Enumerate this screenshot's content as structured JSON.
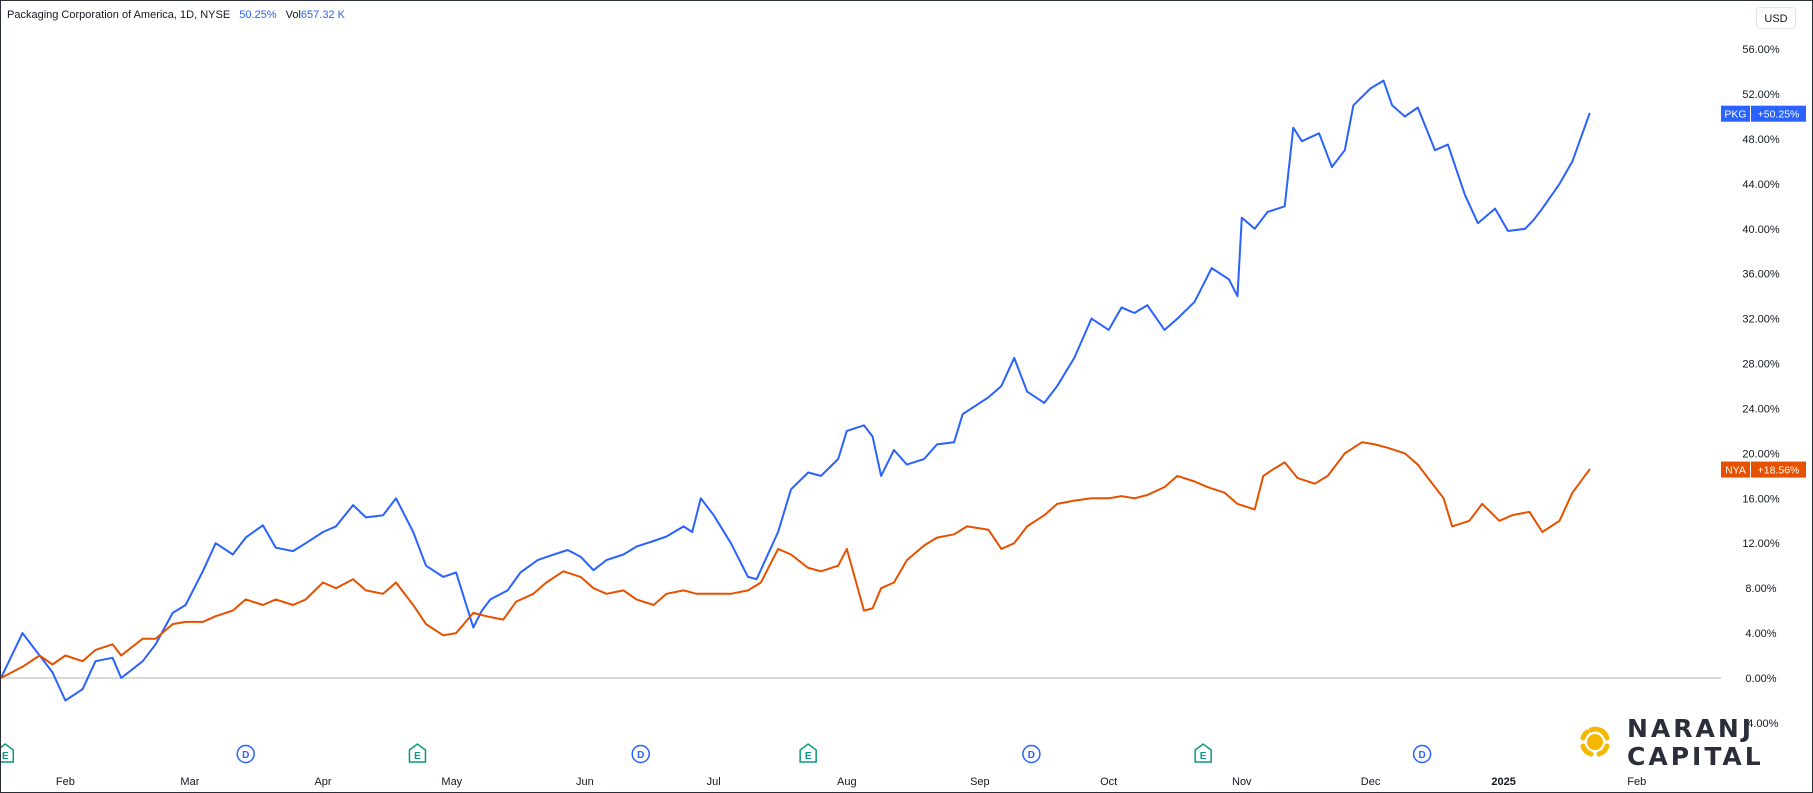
{
  "header": {
    "title": "Packaging Corporation of America, 1D, NYSE",
    "change": "50.25%",
    "vol_label": "Vol",
    "vol_value": "657.32 K"
  },
  "currency_button": "USD",
  "logo": {
    "line1": "NARANJ",
    "line2": "CAPITAL"
  },
  "colors": {
    "pkg": "#2962ff",
    "nya": "#e65100",
    "zero_line": "#b2b5be",
    "event_e": "#089981",
    "event_d": "#2962ff"
  },
  "chart_data": {
    "type": "line",
    "title": "",
    "ylabel": "",
    "y_unit": "%",
    "ylim": [
      -5.5,
      58
    ],
    "y_ticks": [
      "56.00%",
      "52.00%",
      "48.00%",
      "44.00%",
      "40.00%",
      "36.00%",
      "32.00%",
      "28.00%",
      "24.00%",
      "20.00%",
      "16.00%",
      "12.00%",
      "8.00%",
      "4.00%",
      "0.00%",
      "-4.00%"
    ],
    "y_tick_values": [
      56,
      52,
      48,
      44,
      40,
      36,
      32,
      28,
      24,
      20,
      16,
      12,
      8,
      4,
      0,
      -4
    ],
    "x_ticks": [
      {
        "label": "Feb",
        "date": "2024-02-01"
      },
      {
        "label": "Mar",
        "date": "2024-03-01"
      },
      {
        "label": "Apr",
        "date": "2024-04-01"
      },
      {
        "label": "May",
        "date": "2024-05-01"
      },
      {
        "label": "Jun",
        "date": "2024-06-01"
      },
      {
        "label": "Jul",
        "date": "2024-07-01"
      },
      {
        "label": "Aug",
        "date": "2024-08-01"
      },
      {
        "label": "Sep",
        "date": "2024-09-01"
      },
      {
        "label": "Oct",
        "date": "2024-10-01"
      },
      {
        "label": "Nov",
        "date": "2024-11-01"
      },
      {
        "label": "Dec",
        "date": "2024-12-01"
      },
      {
        "label": "2025",
        "date": "2025-01-01"
      },
      {
        "label": "Feb",
        "date": "2025-02-01"
      }
    ],
    "xlim": [
      "2024-01-17",
      "2025-02-12"
    ],
    "grid": false,
    "series": [
      {
        "name": "PKG",
        "last_label": "+50.25%",
        "points": [
          [
            "2024-01-17",
            0
          ],
          [
            "2024-01-22",
            4
          ],
          [
            "2024-01-25",
            2.5
          ],
          [
            "2024-01-29",
            0.5
          ],
          [
            "2024-02-01",
            -2
          ],
          [
            "2024-02-05",
            -1
          ],
          [
            "2024-02-08",
            1.5
          ],
          [
            "2024-02-12",
            1.8
          ],
          [
            "2024-02-14",
            0
          ],
          [
            "2024-02-19",
            1.5
          ],
          [
            "2024-02-22",
            3
          ],
          [
            "2024-02-26",
            5.8
          ],
          [
            "2024-02-29",
            6.5
          ],
          [
            "2024-03-04",
            9.5
          ],
          [
            "2024-03-07",
            12
          ],
          [
            "2024-03-11",
            11
          ],
          [
            "2024-03-14",
            12.5
          ],
          [
            "2024-03-18",
            13.6
          ],
          [
            "2024-03-21",
            11.6
          ],
          [
            "2024-03-25",
            11.3
          ],
          [
            "2024-03-28",
            12
          ],
          [
            "2024-04-01",
            13
          ],
          [
            "2024-04-04",
            13.5
          ],
          [
            "2024-04-08",
            15.4
          ],
          [
            "2024-04-11",
            14.3
          ],
          [
            "2024-04-15",
            14.5
          ],
          [
            "2024-04-18",
            16
          ],
          [
            "2024-04-22",
            13
          ],
          [
            "2024-04-25",
            10
          ],
          [
            "2024-04-29",
            9
          ],
          [
            "2024-05-02",
            9.4
          ],
          [
            "2024-05-06",
            4.5
          ],
          [
            "2024-05-08",
            6
          ],
          [
            "2024-05-10",
            7
          ],
          [
            "2024-05-14",
            7.8
          ],
          [
            "2024-05-17",
            9.4
          ],
          [
            "2024-05-21",
            10.5
          ],
          [
            "2024-05-24",
            10.9
          ],
          [
            "2024-05-28",
            11.4
          ],
          [
            "2024-05-31",
            10.8
          ],
          [
            "2024-06-03",
            9.6
          ],
          [
            "2024-06-06",
            10.5
          ],
          [
            "2024-06-10",
            11
          ],
          [
            "2024-06-13",
            11.7
          ],
          [
            "2024-06-17",
            12.2
          ],
          [
            "2024-06-20",
            12.6
          ],
          [
            "2024-06-24",
            13.5
          ],
          [
            "2024-06-26",
            13
          ],
          [
            "2024-06-28",
            16
          ],
          [
            "2024-07-01",
            14.5
          ],
          [
            "2024-07-05",
            12
          ],
          [
            "2024-07-09",
            9
          ],
          [
            "2024-07-11",
            8.8
          ],
          [
            "2024-07-16",
            13
          ],
          [
            "2024-07-19",
            16.8
          ],
          [
            "2024-07-23",
            18.3
          ],
          [
            "2024-07-26",
            18
          ],
          [
            "2024-07-30",
            19.5
          ],
          [
            "2024-08-01",
            22
          ],
          [
            "2024-08-05",
            22.5
          ],
          [
            "2024-08-07",
            21.5
          ],
          [
            "2024-08-09",
            18
          ],
          [
            "2024-08-12",
            20.3
          ],
          [
            "2024-08-15",
            19
          ],
          [
            "2024-08-19",
            19.5
          ],
          [
            "2024-08-22",
            20.8
          ],
          [
            "2024-08-26",
            21
          ],
          [
            "2024-08-28",
            23.5
          ],
          [
            "2024-09-03",
            25
          ],
          [
            "2024-09-06",
            26
          ],
          [
            "2024-09-09",
            28.5
          ],
          [
            "2024-09-12",
            25.5
          ],
          [
            "2024-09-16",
            24.5
          ],
          [
            "2024-09-19",
            26
          ],
          [
            "2024-09-23",
            28.5
          ],
          [
            "2024-09-27",
            32
          ],
          [
            "2024-10-01",
            31
          ],
          [
            "2024-10-04",
            33
          ],
          [
            "2024-10-07",
            32.5
          ],
          [
            "2024-10-10",
            33.2
          ],
          [
            "2024-10-14",
            31
          ],
          [
            "2024-10-17",
            32
          ],
          [
            "2024-10-21",
            33.5
          ],
          [
            "2024-10-25",
            36.5
          ],
          [
            "2024-10-29",
            35.5
          ],
          [
            "2024-10-31",
            34
          ],
          [
            "2024-11-01",
            41
          ],
          [
            "2024-11-04",
            40
          ],
          [
            "2024-11-07",
            41.5
          ],
          [
            "2024-11-11",
            42
          ],
          [
            "2024-11-13",
            49
          ],
          [
            "2024-11-15",
            47.8
          ],
          [
            "2024-11-19",
            48.5
          ],
          [
            "2024-11-22",
            45.5
          ],
          [
            "2024-11-25",
            47
          ],
          [
            "2024-11-27",
            51
          ],
          [
            "2024-12-01",
            52.5
          ],
          [
            "2024-12-04",
            53.2
          ],
          [
            "2024-12-06",
            51
          ],
          [
            "2024-12-09",
            50
          ],
          [
            "2024-12-12",
            50.8
          ],
          [
            "2024-12-16",
            47
          ],
          [
            "2024-12-19",
            47.5
          ],
          [
            "2024-12-23",
            43
          ],
          [
            "2024-12-26",
            40.5
          ],
          [
            "2024-12-30",
            41.8
          ],
          [
            "2025-01-02",
            39.8
          ],
          [
            "2025-01-06",
            40
          ],
          [
            "2025-01-08",
            40.8
          ],
          [
            "2025-01-10",
            41.8
          ],
          [
            "2025-01-14",
            44
          ],
          [
            "2025-01-17",
            46
          ],
          [
            "2025-01-21",
            50.25
          ]
        ]
      },
      {
        "name": "NYA",
        "last_label": "+18.56%",
        "points": [
          [
            "2024-01-17",
            0
          ],
          [
            "2024-01-22",
            1
          ],
          [
            "2024-01-26",
            2
          ],
          [
            "2024-01-29",
            1.2
          ],
          [
            "2024-02-01",
            2
          ],
          [
            "2024-02-05",
            1.5
          ],
          [
            "2024-02-08",
            2.5
          ],
          [
            "2024-02-12",
            3
          ],
          [
            "2024-02-14",
            2
          ],
          [
            "2024-02-19",
            3.5
          ],
          [
            "2024-02-22",
            3.5
          ],
          [
            "2024-02-26",
            4.8
          ],
          [
            "2024-02-29",
            5
          ],
          [
            "2024-03-04",
            5
          ],
          [
            "2024-03-07",
            5.5
          ],
          [
            "2024-03-11",
            6
          ],
          [
            "2024-03-14",
            7
          ],
          [
            "2024-03-18",
            6.5
          ],
          [
            "2024-03-21",
            7
          ],
          [
            "2024-03-25",
            6.5
          ],
          [
            "2024-03-28",
            7
          ],
          [
            "2024-04-01",
            8.5
          ],
          [
            "2024-04-04",
            8
          ],
          [
            "2024-04-08",
            8.8
          ],
          [
            "2024-04-11",
            7.8
          ],
          [
            "2024-04-15",
            7.5
          ],
          [
            "2024-04-18",
            8.5
          ],
          [
            "2024-04-22",
            6.5
          ],
          [
            "2024-04-25",
            4.8
          ],
          [
            "2024-04-29",
            3.8
          ],
          [
            "2024-05-02",
            4
          ],
          [
            "2024-05-06",
            5.8
          ],
          [
            "2024-05-09",
            5.5
          ],
          [
            "2024-05-13",
            5.2
          ],
          [
            "2024-05-16",
            6.8
          ],
          [
            "2024-05-20",
            7.5
          ],
          [
            "2024-05-23",
            8.5
          ],
          [
            "2024-05-27",
            9.5
          ],
          [
            "2024-05-31",
            9
          ],
          [
            "2024-06-03",
            8
          ],
          [
            "2024-06-06",
            7.5
          ],
          [
            "2024-06-10",
            7.8
          ],
          [
            "2024-06-13",
            7
          ],
          [
            "2024-06-17",
            6.5
          ],
          [
            "2024-06-20",
            7.5
          ],
          [
            "2024-06-24",
            7.8
          ],
          [
            "2024-06-27",
            7.5
          ],
          [
            "2024-07-01",
            7.5
          ],
          [
            "2024-07-05",
            7.5
          ],
          [
            "2024-07-09",
            7.8
          ],
          [
            "2024-07-12",
            8.5
          ],
          [
            "2024-07-16",
            11.5
          ],
          [
            "2024-07-19",
            11
          ],
          [
            "2024-07-23",
            9.8
          ],
          [
            "2024-07-26",
            9.5
          ],
          [
            "2024-07-30",
            10
          ],
          [
            "2024-08-01",
            11.5
          ],
          [
            "2024-08-05",
            6
          ],
          [
            "2024-08-07",
            6.2
          ],
          [
            "2024-08-09",
            8
          ],
          [
            "2024-08-12",
            8.5
          ],
          [
            "2024-08-15",
            10.5
          ],
          [
            "2024-08-19",
            11.8
          ],
          [
            "2024-08-22",
            12.5
          ],
          [
            "2024-08-26",
            12.8
          ],
          [
            "2024-08-29",
            13.5
          ],
          [
            "2024-09-03",
            13.2
          ],
          [
            "2024-09-06",
            11.5
          ],
          [
            "2024-09-09",
            12
          ],
          [
            "2024-09-12",
            13.5
          ],
          [
            "2024-09-16",
            14.5
          ],
          [
            "2024-09-19",
            15.5
          ],
          [
            "2024-09-23",
            15.8
          ],
          [
            "2024-09-27",
            16
          ],
          [
            "2024-10-01",
            16
          ],
          [
            "2024-10-04",
            16.2
          ],
          [
            "2024-10-07",
            16
          ],
          [
            "2024-10-10",
            16.3
          ],
          [
            "2024-10-14",
            17
          ],
          [
            "2024-10-17",
            18
          ],
          [
            "2024-10-21",
            17.5
          ],
          [
            "2024-10-24",
            17
          ],
          [
            "2024-10-28",
            16.5
          ],
          [
            "2024-10-31",
            15.5
          ],
          [
            "2024-11-04",
            15
          ],
          [
            "2024-11-06",
            18
          ],
          [
            "2024-11-08",
            18.5
          ],
          [
            "2024-11-11",
            19.2
          ],
          [
            "2024-11-14",
            17.8
          ],
          [
            "2024-11-18",
            17.3
          ],
          [
            "2024-11-21",
            18
          ],
          [
            "2024-11-25",
            20
          ],
          [
            "2024-11-29",
            21
          ],
          [
            "2024-12-02",
            20.8
          ],
          [
            "2024-12-05",
            20.5
          ],
          [
            "2024-12-09",
            20
          ],
          [
            "2024-12-12",
            19
          ],
          [
            "2024-12-16",
            17
          ],
          [
            "2024-12-18",
            16
          ],
          [
            "2024-12-20",
            13.5
          ],
          [
            "2024-12-24",
            14
          ],
          [
            "2024-12-27",
            15.5
          ],
          [
            "2024-12-31",
            14
          ],
          [
            "2025-01-03",
            14.5
          ],
          [
            "2025-01-07",
            14.8
          ],
          [
            "2025-01-10",
            13
          ],
          [
            "2025-01-14",
            14
          ],
          [
            "2025-01-17",
            16.5
          ],
          [
            "2025-01-21",
            18.56
          ]
        ]
      }
    ],
    "events": [
      {
        "type": "E",
        "date": "2024-01-18"
      },
      {
        "type": "D",
        "date": "2024-03-14"
      },
      {
        "type": "E",
        "date": "2024-04-23"
      },
      {
        "type": "D",
        "date": "2024-06-14"
      },
      {
        "type": "E",
        "date": "2024-07-23"
      },
      {
        "type": "D",
        "date": "2024-09-13"
      },
      {
        "type": "E",
        "date": "2024-10-23"
      },
      {
        "type": "D",
        "date": "2024-12-13"
      }
    ]
  }
}
